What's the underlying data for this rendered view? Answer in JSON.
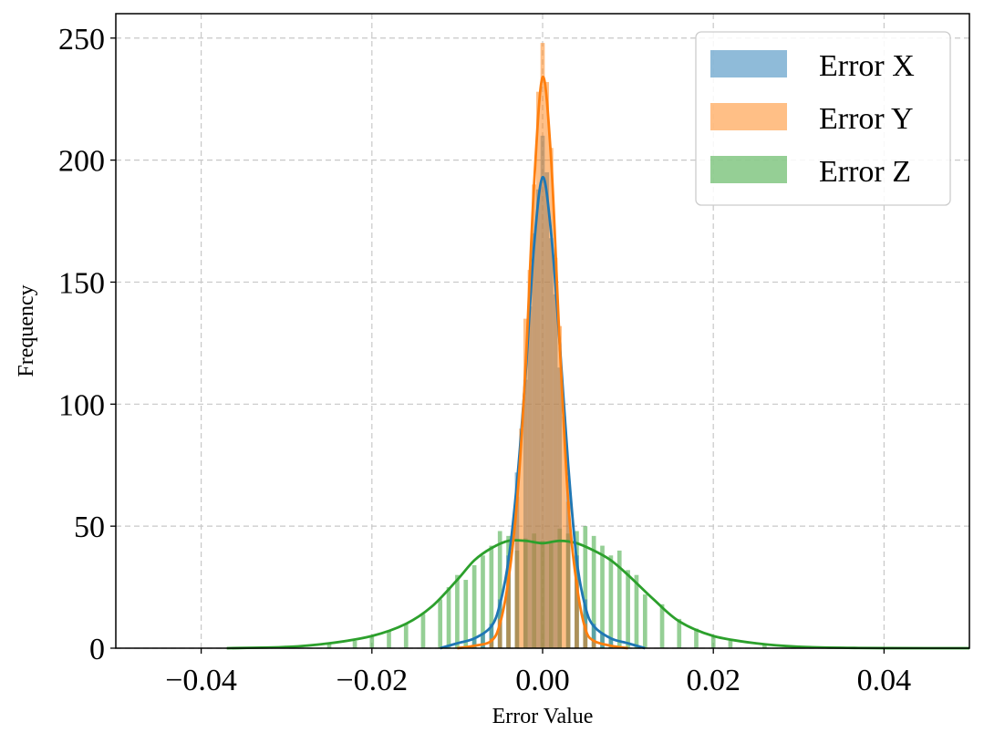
{
  "chart_data": {
    "type": "histogram",
    "title": "",
    "xlabel": "Error Value",
    "ylabel": "Frequency",
    "xlim": [
      -0.05,
      0.05
    ],
    "ylim": [
      0,
      260
    ],
    "x_ticks": [
      -0.04,
      -0.02,
      0.0,
      0.02,
      0.04
    ],
    "x_tick_labels": [
      "−0.04",
      "−0.02",
      "0.00",
      "0.02",
      "0.04"
    ],
    "y_ticks": [
      0,
      50,
      100,
      150,
      200,
      250
    ],
    "y_tick_labels": [
      "0",
      "50",
      "100",
      "150",
      "200",
      "250"
    ],
    "grid": true,
    "legend_position": "top-right",
    "bin_width": 0.0005,
    "series": [
      {
        "name": "Error X",
        "color": "#1f77b4",
        "kde_x": [
          -0.012,
          -0.01,
          -0.008,
          -0.006,
          -0.005,
          -0.004,
          -0.003,
          -0.002,
          -0.001,
          0.0,
          0.001,
          0.002,
          0.003,
          0.004,
          0.005,
          0.006,
          0.008,
          0.01,
          0.012
        ],
        "kde_y": [
          0,
          2,
          4,
          9,
          18,
          36,
          68,
          112,
          165,
          193,
          170,
          125,
          75,
          36,
          17,
          9,
          4,
          2,
          0
        ],
        "bins_x": [
          -0.008,
          -0.007,
          -0.006,
          -0.005,
          -0.004,
          -0.003,
          -0.002,
          -0.0015,
          -0.001,
          -0.0005,
          0.0,
          0.0005,
          0.001,
          0.0015,
          0.002,
          0.003,
          0.004,
          0.005,
          0.006,
          0.007,
          0.008
        ],
        "bins_y": [
          4,
          6,
          10,
          20,
          38,
          72,
          110,
          140,
          170,
          188,
          210,
          195,
          168,
          145,
          115,
          70,
          38,
          20,
          10,
          6,
          4
        ]
      },
      {
        "name": "Error Y",
        "color": "#ff7f0e",
        "kde_x": [
          -0.01,
          -0.008,
          -0.006,
          -0.005,
          -0.004,
          -0.003,
          -0.002,
          -0.001,
          0.0,
          0.001,
          0.002,
          0.003,
          0.004,
          0.005,
          0.006,
          0.008,
          0.01
        ],
        "kde_y": [
          0,
          1,
          3,
          10,
          28,
          60,
          115,
          190,
          234,
          200,
          125,
          60,
          26,
          8,
          3,
          1,
          0
        ],
        "bins_x": [
          -0.006,
          -0.005,
          -0.004,
          -0.003,
          -0.0025,
          -0.002,
          -0.0015,
          -0.001,
          -0.0005,
          0.0,
          0.0005,
          0.001,
          0.0015,
          0.002,
          0.0025,
          0.003,
          0.004,
          0.005,
          0.006
        ],
        "bins_y": [
          4,
          12,
          30,
          62,
          90,
          135,
          155,
          190,
          228,
          248,
          232,
          205,
          160,
          132,
          95,
          60,
          28,
          10,
          3
        ]
      },
      {
        "name": "Error Z",
        "color": "#2ca02c",
        "kde_x": [
          -0.037,
          -0.03,
          -0.025,
          -0.02,
          -0.016,
          -0.013,
          -0.01,
          -0.008,
          -0.006,
          -0.004,
          -0.002,
          0.0,
          0.002,
          0.004,
          0.006,
          0.008,
          0.01,
          0.013,
          0.016,
          0.02,
          0.025,
          0.03,
          0.037,
          0.045,
          0.05
        ],
        "kde_y": [
          0,
          0.5,
          2,
          5,
          10,
          17,
          28,
          36,
          41,
          44,
          44,
          43,
          44,
          43,
          40,
          36,
          30,
          20,
          11,
          5,
          2,
          0.6,
          0.1,
          0,
          0
        ],
        "bins_x": [
          -0.03,
          -0.025,
          -0.022,
          -0.02,
          -0.018,
          -0.016,
          -0.014,
          -0.012,
          -0.011,
          -0.01,
          -0.009,
          -0.008,
          -0.007,
          -0.006,
          -0.005,
          -0.004,
          -0.003,
          -0.002,
          -0.001,
          0.0,
          0.001,
          0.002,
          0.003,
          0.004,
          0.005,
          0.006,
          0.007,
          0.008,
          0.009,
          0.01,
          0.011,
          0.012,
          0.014,
          0.016,
          0.018,
          0.02,
          0.022,
          0.026,
          0.03
        ],
        "bins_y": [
          1,
          2,
          3,
          5,
          7,
          10,
          14,
          20,
          25,
          30,
          28,
          34,
          38,
          42,
          48,
          46,
          40,
          45,
          47,
          44,
          43,
          49,
          47,
          48,
          50,
          46,
          42,
          38,
          40,
          32,
          30,
          22,
          18,
          12,
          8,
          5,
          3,
          2,
          1
        ]
      }
    ]
  }
}
